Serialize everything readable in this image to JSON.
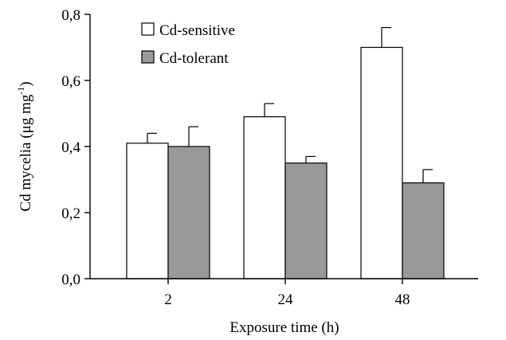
{
  "chart_data": {
    "type": "bar",
    "title": "",
    "xlabel": "Exposure time (h)",
    "ylabel_main": "Cd mycelia (μg mg",
    "ylabel_sup": "-1",
    "ylabel_close": ")",
    "categories": [
      "2",
      "24",
      "48"
    ],
    "ylim": [
      0,
      0.8
    ],
    "yticks": [
      0.0,
      0.2,
      0.4,
      0.6,
      0.8
    ],
    "ytick_labels": [
      "0,0",
      "0,2",
      "0,4",
      "0,6",
      "0,8"
    ],
    "grid": false,
    "legend_position": "top-left",
    "series": [
      {
        "name": "Cd-sensitive",
        "color": "#ffffff",
        "values": [
          0.41,
          0.49,
          0.7
        ],
        "errors": [
          0.03,
          0.04,
          0.06
        ]
      },
      {
        "name": "Cd-tolerant",
        "color": "#999999",
        "values": [
          0.4,
          0.35,
          0.29
        ],
        "errors": [
          0.06,
          0.02,
          0.04
        ]
      }
    ]
  }
}
